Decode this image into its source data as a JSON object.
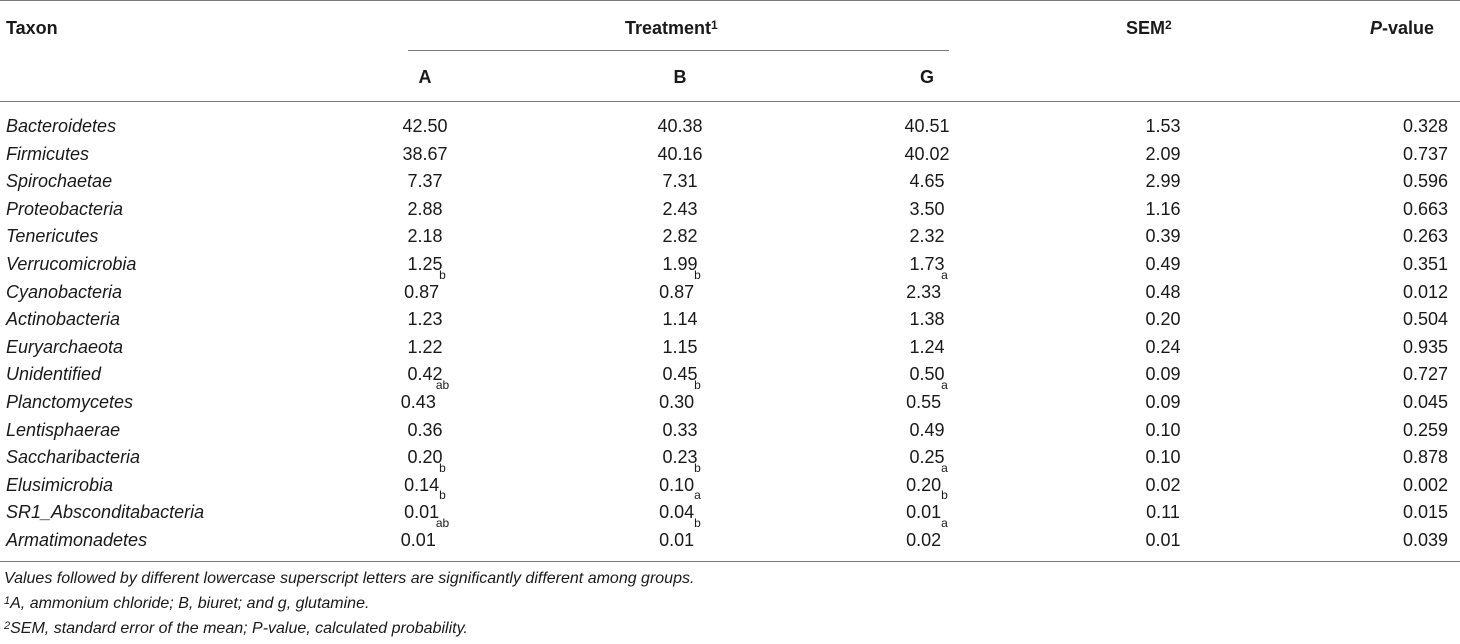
{
  "headers": {
    "taxon": "Taxon",
    "treatment": "Treatment",
    "treatment_sup": "1",
    "sem": "SEM",
    "sem_sup": "2",
    "pvalue_italic": "P",
    "pvalue_rest": "-value",
    "col_a": "A",
    "col_b": "B",
    "col_g": "G"
  },
  "rows": [
    {
      "taxon": "Bacteroidetes",
      "a": "42.50",
      "a_sup": "",
      "b": "40.38",
      "b_sup": "",
      "g": "40.51",
      "g_sup": "",
      "sem": "1.53",
      "p": "0.328"
    },
    {
      "taxon": "Firmicutes",
      "a": "38.67",
      "a_sup": "",
      "b": "40.16",
      "b_sup": "",
      "g": "40.02",
      "g_sup": "",
      "sem": "2.09",
      "p": "0.737"
    },
    {
      "taxon": "Spirochaetae",
      "a": "7.37",
      "a_sup": "",
      "b": "7.31",
      "b_sup": "",
      "g": "4.65",
      "g_sup": "",
      "sem": "2.99",
      "p": "0.596"
    },
    {
      "taxon": "Proteobacteria",
      "a": "2.88",
      "a_sup": "",
      "b": "2.43",
      "b_sup": "",
      "g": "3.50",
      "g_sup": "",
      "sem": "1.16",
      "p": "0.663"
    },
    {
      "taxon": "Tenericutes",
      "a": "2.18",
      "a_sup": "",
      "b": "2.82",
      "b_sup": "",
      "g": "2.32",
      "g_sup": "",
      "sem": "0.39",
      "p": "0.263"
    },
    {
      "taxon": "Verrucomicrobia",
      "a": "1.25",
      "a_sup": "",
      "b": "1.99",
      "b_sup": "",
      "g": "1.73",
      "g_sup": "",
      "sem": "0.49",
      "p": "0.351"
    },
    {
      "taxon": "Cyanobacteria",
      "a": "0.87",
      "a_sup": "b",
      "b": "0.87",
      "b_sup": "b",
      "g": "2.33",
      "g_sup": "a",
      "sem": "0.48",
      "p": "0.012"
    },
    {
      "taxon": "Actinobacteria",
      "a": "1.23",
      "a_sup": "",
      "b": "1.14",
      "b_sup": "",
      "g": "1.38",
      "g_sup": "",
      "sem": "0.20",
      "p": "0.504"
    },
    {
      "taxon": "Euryarchaeota",
      "a": "1.22",
      "a_sup": "",
      "b": "1.15",
      "b_sup": "",
      "g": "1.24",
      "g_sup": "",
      "sem": "0.24",
      "p": "0.935"
    },
    {
      "taxon": "Unidentified",
      "a": "0.42",
      "a_sup": "",
      "b": "0.45",
      "b_sup": "",
      "g": "0.50",
      "g_sup": "",
      "sem": "0.09",
      "p": "0.727"
    },
    {
      "taxon": "Planctomycetes",
      "a": "0.43",
      "a_sup": "ab",
      "b": "0.30",
      "b_sup": "b",
      "g": "0.55",
      "g_sup": "a",
      "sem": "0.09",
      "p": "0.045"
    },
    {
      "taxon": "Lentisphaerae",
      "a": "0.36",
      "a_sup": "",
      "b": "0.33",
      "b_sup": "",
      "g": "0.49",
      "g_sup": "",
      "sem": "0.10",
      "p": "0.259"
    },
    {
      "taxon": "Saccharibacteria",
      "a": "0.20",
      "a_sup": "",
      "b": "0.23",
      "b_sup": "",
      "g": "0.25",
      "g_sup": "",
      "sem": "0.10",
      "p": "0.878"
    },
    {
      "taxon": "Elusimicrobia",
      "a": "0.14",
      "a_sup": "b",
      "b": "0.10",
      "b_sup": "b",
      "g": "0.20",
      "g_sup": "a",
      "sem": "0.02",
      "p": "0.002"
    },
    {
      "taxon": "SR1_Absconditabacteria",
      "a": "0.01",
      "a_sup": "b",
      "b": "0.04",
      "b_sup": "a",
      "g": "0.01",
      "g_sup": "b",
      "sem": "0.11",
      "p": "0.015"
    },
    {
      "taxon": "Armatimonadetes",
      "a": "0.01",
      "a_sup": "ab",
      "b": "0.01",
      "b_sup": "b",
      "g": "0.02",
      "g_sup": "a",
      "sem": "0.01",
      "p": "0.039"
    }
  ],
  "footnotes": {
    "note1": "Values followed by different lowercase superscript letters are significantly different among groups.",
    "note2_sup": "1",
    "note2": "A, ammonium chloride; B, biuret; and g, glutamine.",
    "note3_sup": "2",
    "note3": "SEM, standard error of the mean; P-value, calculated probability."
  }
}
